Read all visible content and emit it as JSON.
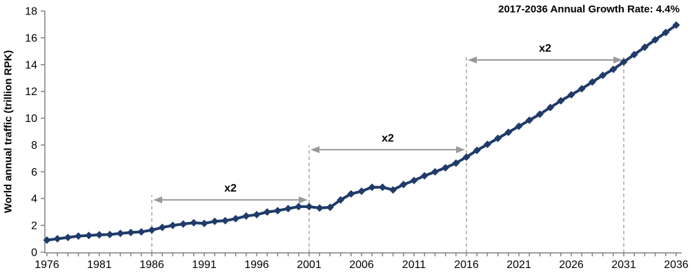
{
  "chart_data": {
    "type": "line",
    "growth_note": "2017-2036 Annual Growth Rate: 4.4%",
    "ylabel": "World annual traffic (trillion RPK)",
    "xlabel": "",
    "ylim": [
      0,
      18
    ],
    "y_tick_step": 2,
    "x_tick_label_step": 5,
    "grid": false,
    "legend": false,
    "x": [
      1976,
      1977,
      1978,
      1979,
      1980,
      1981,
      1982,
      1983,
      1984,
      1985,
      1986,
      1987,
      1988,
      1989,
      1990,
      1991,
      1992,
      1993,
      1994,
      1995,
      1996,
      1997,
      1998,
      1999,
      2000,
      2001,
      2002,
      2003,
      2004,
      2005,
      2006,
      2007,
      2008,
      2009,
      2010,
      2011,
      2012,
      2013,
      2014,
      2015,
      2016,
      2017,
      2018,
      2019,
      2020,
      2021,
      2022,
      2023,
      2024,
      2025,
      2026,
      2027,
      2028,
      2029,
      2030,
      2031,
      2032,
      2033,
      2034,
      2035,
      2036
    ],
    "series": [
      {
        "name": "World annual traffic",
        "marker": "diamond",
        "values": [
          0.9,
          1.0,
          1.1,
          1.2,
          1.25,
          1.3,
          1.32,
          1.4,
          1.47,
          1.52,
          1.65,
          1.85,
          2.0,
          2.1,
          2.2,
          2.15,
          2.3,
          2.35,
          2.5,
          2.7,
          2.8,
          3.0,
          3.1,
          3.25,
          3.4,
          3.4,
          3.3,
          3.35,
          3.9,
          4.35,
          4.55,
          4.85,
          4.85,
          4.65,
          5.05,
          5.35,
          5.7,
          6.0,
          6.3,
          6.65,
          7.1,
          7.6,
          8.05,
          8.5,
          8.95,
          9.4,
          9.85,
          10.3,
          10.8,
          11.3,
          11.75,
          12.2,
          12.7,
          13.2,
          13.65,
          14.2,
          14.75,
          15.3,
          15.85,
          16.4,
          16.95
        ]
      }
    ],
    "annotations": {
      "doubling_arrows": [
        {
          "label": "x2",
          "from_year": 1986,
          "to_year": 2001,
          "at_value": 3.9
        },
        {
          "label": "x2",
          "from_year": 2001,
          "to_year": 2016,
          "at_value": 7.65
        },
        {
          "label": "x2",
          "from_year": 2016,
          "to_year": 2031,
          "at_value": 14.35
        }
      ],
      "dashed_lines": [
        {
          "year": 1986,
          "top_value": 4.25
        },
        {
          "year": 2001,
          "top_value": 7.95
        },
        {
          "year": 2016,
          "top_value": 14.6
        },
        {
          "year": 2031,
          "top_value": 14.6
        }
      ]
    },
    "colors": {
      "line": "#203b69",
      "axis": "#808080",
      "tick_text": "#000000",
      "dashed": "#a6a6a6",
      "arrow": "#999999",
      "annotation_text": "#000000"
    }
  }
}
